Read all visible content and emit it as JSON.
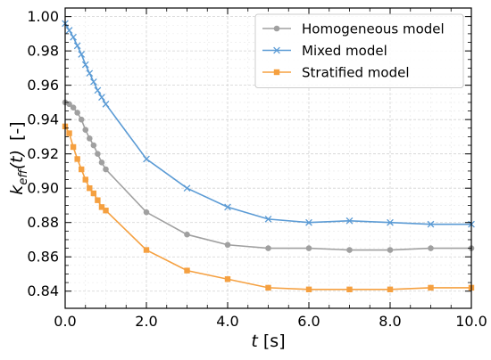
{
  "chart_data": {
    "type": "line",
    "xlabel_var": "t",
    "xlabel_unit": " [s]",
    "ylabel_var": "k",
    "ylabel_sub": "eff",
    "ylabel_arg": "(t)",
    "ylabel_unit": "[-]",
    "xlim": [
      0,
      10
    ],
    "ylim": [
      0.83,
      1.005
    ],
    "xticks": [
      0,
      2,
      4,
      6,
      8,
      10
    ],
    "xtick_labels": [
      "0.0",
      "2.0",
      "4.0",
      "6.0",
      "8.0",
      "10.0"
    ],
    "yticks": [
      0.84,
      0.86,
      0.88,
      0.9,
      0.92,
      0.94,
      0.96,
      0.98,
      1.0
    ],
    "ytick_labels": [
      "0.84",
      "0.86",
      "0.88",
      "0.90",
      "0.92",
      "0.94",
      "0.96",
      "0.98",
      "1.00"
    ],
    "grid": true,
    "legend_position": "top-right",
    "series": [
      {
        "name": "Homogeneous model",
        "color": "#a0a0a0",
        "marker": "circle",
        "x": [
          0,
          0.1,
          0.2,
          0.3,
          0.4,
          0.5,
          0.6,
          0.7,
          0.8,
          0.9,
          1.0,
          2.0,
          3.0,
          4.0,
          5.0,
          6.0,
          7.0,
          8.0,
          9.0,
          10.0
        ],
        "y": [
          0.95,
          0.949,
          0.947,
          0.944,
          0.94,
          0.934,
          0.929,
          0.925,
          0.92,
          0.915,
          0.911,
          0.886,
          0.873,
          0.867,
          0.865,
          0.865,
          0.864,
          0.864,
          0.865,
          0.865
        ]
      },
      {
        "name": "Mixed model",
        "color": "#5b9bd5",
        "marker": "x",
        "x": [
          0,
          0.1,
          0.2,
          0.3,
          0.4,
          0.5,
          0.6,
          0.7,
          0.8,
          0.9,
          1.0,
          2.0,
          3.0,
          4.0,
          5.0,
          6.0,
          7.0,
          8.0,
          9.0,
          10.0
        ],
        "y": [
          0.996,
          0.992,
          0.988,
          0.983,
          0.978,
          0.972,
          0.967,
          0.962,
          0.957,
          0.953,
          0.949,
          0.917,
          0.9,
          0.889,
          0.882,
          0.88,
          0.881,
          0.88,
          0.879,
          0.879
        ]
      },
      {
        "name": "Stratified model",
        "color": "#f5a040",
        "marker": "square",
        "x": [
          0,
          0.1,
          0.2,
          0.3,
          0.4,
          0.5,
          0.6,
          0.7,
          0.8,
          0.9,
          1.0,
          2.0,
          3.0,
          4.0,
          5.0,
          6.0,
          7.0,
          8.0,
          9.0,
          10.0
        ],
        "y": [
          0.936,
          0.932,
          0.924,
          0.917,
          0.911,
          0.905,
          0.9,
          0.897,
          0.893,
          0.889,
          0.887,
          0.864,
          0.852,
          0.847,
          0.842,
          0.841,
          0.841,
          0.841,
          0.842,
          0.842
        ]
      }
    ]
  }
}
